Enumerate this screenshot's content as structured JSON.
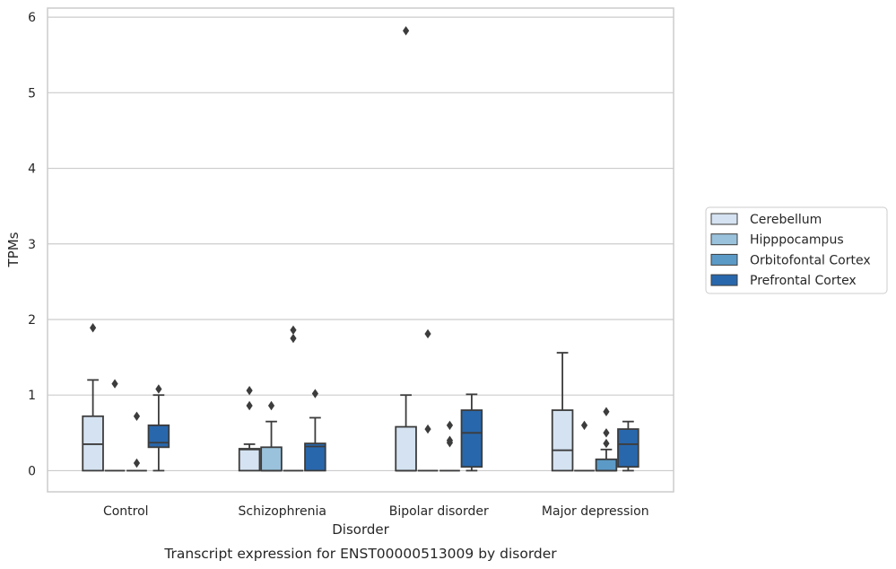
{
  "chart_data": {
    "type": "box",
    "title": "",
    "caption": "Transcript expression for ENST00000513009 by disorder",
    "xlabel": "Disorder",
    "ylabel": "TPMs",
    "ylim": [
      -0.28,
      6.12
    ],
    "yticks": [
      0,
      1,
      2,
      3,
      4,
      5,
      6
    ],
    "grid": "horizontal",
    "legend_position": "right",
    "categories": [
      "Control",
      "Schizophrenia",
      "Bipolar disorder",
      "Major depression"
    ],
    "series": [
      {
        "name": "Cerebellum",
        "color": "#d4e2f1",
        "boxes": [
          {
            "q1": 0.0,
            "median": 0.35,
            "q3": 0.72,
            "whisker_low": 0.0,
            "whisker_high": 1.2,
            "outliers": [
              1.89
            ]
          },
          {
            "q1": 0.0,
            "median": 0.28,
            "q3": 0.29,
            "whisker_low": 0.0,
            "whisker_high": 0.35,
            "outliers": [
              0.86,
              1.06
            ]
          },
          {
            "q1": 0.0,
            "median": 0.0,
            "q3": 0.58,
            "whisker_low": 0.0,
            "whisker_high": 1.0,
            "outliers": [
              5.82
            ]
          },
          {
            "q1": 0.0,
            "median": 0.27,
            "q3": 0.8,
            "whisker_low": 0.0,
            "whisker_high": 1.56,
            "outliers": []
          }
        ]
      },
      {
        "name": "Hipppocampus",
        "color": "#9ac2dc",
        "boxes": [
          {
            "q1": 0.0,
            "median": 0.0,
            "q3": 0.0,
            "whisker_low": 0.0,
            "whisker_high": 0.0,
            "outliers": [
              1.15
            ]
          },
          {
            "q1": 0.0,
            "median": 0.0,
            "q3": 0.31,
            "whisker_low": 0.0,
            "whisker_high": 0.65,
            "outliers": [
              0.86
            ]
          },
          {
            "q1": 0.0,
            "median": 0.0,
            "q3": 0.0,
            "whisker_low": 0.0,
            "whisker_high": 0.0,
            "outliers": [
              0.55,
              1.81
            ]
          },
          {
            "q1": 0.0,
            "median": 0.0,
            "q3": 0.0,
            "whisker_low": 0.0,
            "whisker_high": 0.0,
            "outliers": [
              0.6
            ]
          }
        ]
      },
      {
        "name": "Orbitofontal Cortex",
        "color": "#5b9ac7",
        "boxes": [
          {
            "q1": 0.0,
            "median": 0.0,
            "q3": 0.0,
            "whisker_low": 0.0,
            "whisker_high": 0.0,
            "outliers": [
              0.1,
              0.72
            ]
          },
          {
            "q1": 0.0,
            "median": 0.0,
            "q3": 0.0,
            "whisker_low": 0.0,
            "whisker_high": 0.0,
            "outliers": [
              1.75,
              1.86
            ]
          },
          {
            "q1": 0.0,
            "median": 0.0,
            "q3": 0.0,
            "whisker_low": 0.0,
            "whisker_high": 0.0,
            "outliers": [
              0.37,
              0.4,
              0.6
            ]
          },
          {
            "q1": 0.0,
            "median": 0.0,
            "q3": 0.15,
            "whisker_low": 0.0,
            "whisker_high": 0.28,
            "outliers": [
              0.36,
              0.5,
              0.78
            ]
          }
        ]
      },
      {
        "name": "Prefrontal Cortex",
        "color": "#2867ac",
        "boxes": [
          {
            "q1": 0.31,
            "median": 0.37,
            "q3": 0.6,
            "whisker_low": 0.0,
            "whisker_high": 1.0,
            "outliers": [
              1.08
            ]
          },
          {
            "q1": 0.0,
            "median": 0.32,
            "q3": 0.36,
            "whisker_low": 0.0,
            "whisker_high": 0.7,
            "outliers": [
              1.02
            ]
          },
          {
            "q1": 0.05,
            "median": 0.5,
            "q3": 0.8,
            "whisker_low": 0.0,
            "whisker_high": 1.01,
            "outliers": []
          },
          {
            "q1": 0.05,
            "median": 0.35,
            "q3": 0.55,
            "whisker_low": 0.0,
            "whisker_high": 0.65,
            "outliers": []
          }
        ]
      }
    ]
  },
  "colors": {
    "grid": "#cccccc",
    "spine": "#cccccc",
    "box_edge": "#3c3c3c"
  }
}
